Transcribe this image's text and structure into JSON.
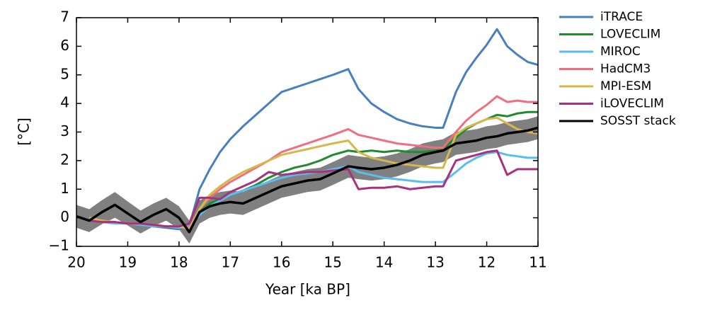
{
  "chart_data": {
    "type": "line",
    "x": [
      20,
      19.75,
      19.5,
      19.25,
      19,
      18.75,
      18.5,
      18.25,
      18,
      17.8,
      17.6,
      17.4,
      17.2,
      17,
      16.75,
      16.5,
      16.25,
      16,
      15.75,
      15.5,
      15.25,
      15,
      14.7,
      14.5,
      14.25,
      14,
      13.75,
      13.5,
      13.25,
      13,
      12.85,
      12.6,
      12.4,
      12.2,
      12,
      11.8,
      11.6,
      11.4,
      11.2,
      11
    ],
    "xlabel": "Year [ka BP]",
    "ylabel": "[°C]",
    "xlim": [
      20,
      11
    ],
    "xticks": [
      20,
      19,
      18,
      17,
      16,
      15,
      14,
      13,
      12,
      11
    ],
    "ylim": [
      -1,
      7
    ],
    "yticks": [
      {
        "value": -1,
        "label": "−1"
      },
      0,
      1,
      2,
      3,
      4,
      5,
      6,
      7
    ],
    "legend": "right",
    "series": [
      {
        "name": "iTRACE",
        "color": "#4a7fbf",
        "values": [
          null,
          -0.05,
          -0.15,
          -0.15,
          -0.2,
          -0.25,
          -0.3,
          -0.35,
          -0.4,
          -0.3,
          1.0,
          1.7,
          2.3,
          2.75,
          3.2,
          3.6,
          4.0,
          4.4,
          4.55,
          4.7,
          4.85,
          5.0,
          5.2,
          4.5,
          4.0,
          3.7,
          3.45,
          3.3,
          3.2,
          3.15,
          3.15,
          4.4,
          5.1,
          5.6,
          6.05,
          6.6,
          6.0,
          5.7,
          5.45,
          5.35
        ]
      },
      {
        "name": "LOVECLIM",
        "color": "#1f8a2e",
        "values": [
          null,
          -0.1,
          -0.15,
          -0.15,
          -0.2,
          -0.25,
          -0.3,
          -0.3,
          -0.35,
          -0.3,
          0.2,
          0.5,
          0.65,
          0.8,
          0.95,
          1.15,
          1.4,
          1.6,
          1.75,
          1.85,
          2.0,
          2.2,
          2.35,
          2.3,
          2.35,
          2.3,
          2.35,
          2.3,
          2.3,
          2.35,
          2.4,
          2.8,
          3.1,
          3.3,
          3.45,
          3.6,
          3.55,
          3.65,
          3.7,
          3.7
        ]
      },
      {
        "name": "MIROC",
        "color": "#5bbcf0",
        "values": [
          null,
          -0.1,
          -0.15,
          -0.2,
          -0.2,
          -0.25,
          -0.3,
          -0.3,
          -0.35,
          -0.3,
          0.1,
          0.4,
          0.6,
          0.8,
          0.95,
          1.1,
          1.25,
          1.4,
          1.5,
          1.55,
          1.6,
          1.7,
          1.8,
          1.6,
          1.5,
          1.4,
          1.35,
          1.3,
          1.25,
          1.25,
          1.25,
          1.6,
          1.9,
          2.1,
          2.25,
          2.3,
          2.2,
          2.15,
          2.1,
          2.1
        ]
      },
      {
        "name": "HadCM3",
        "color": "#ef6f7f",
        "values": [
          null,
          -0.05,
          -0.1,
          -0.15,
          -0.2,
          -0.2,
          -0.25,
          -0.3,
          -0.3,
          -0.35,
          0.3,
          0.7,
          1.0,
          1.25,
          1.5,
          1.75,
          2.0,
          2.3,
          2.45,
          2.6,
          2.75,
          2.9,
          3.1,
          2.9,
          2.8,
          2.7,
          2.6,
          2.55,
          2.5,
          2.45,
          2.45,
          3.0,
          3.4,
          3.7,
          3.95,
          4.25,
          4.05,
          4.1,
          4.05,
          4.05
        ]
      },
      {
        "name": "MPI-ESM",
        "color": "#d4b84a",
        "values": [
          null,
          0.0,
          -0.1,
          -0.15,
          -0.2,
          -0.2,
          -0.25,
          -0.3,
          -0.3,
          -0.4,
          0.3,
          0.8,
          1.1,
          1.35,
          1.6,
          1.8,
          2.0,
          2.2,
          2.3,
          2.4,
          2.5,
          2.6,
          2.7,
          2.3,
          2.1,
          2.0,
          1.9,
          1.85,
          1.8,
          1.75,
          1.75,
          2.9,
          3.15,
          3.3,
          3.45,
          3.5,
          3.3,
          3.1,
          3.0,
          2.95
        ]
      },
      {
        "name": "iLOVECLIM",
        "color": "#a8317e",
        "values": [
          null,
          -0.1,
          -0.15,
          -0.15,
          -0.2,
          -0.2,
          -0.25,
          -0.3,
          -0.3,
          -0.2,
          0.7,
          0.7,
          0.65,
          0.9,
          1.1,
          1.3,
          1.6,
          1.5,
          1.55,
          1.6,
          1.6,
          1.65,
          1.7,
          1.0,
          1.05,
          1.05,
          1.1,
          1.0,
          1.05,
          1.1,
          1.1,
          2.0,
          2.1,
          2.2,
          2.3,
          2.35,
          1.5,
          1.7,
          1.7,
          1.7
        ]
      },
      {
        "name": "SOSST stack",
        "color": "#000000",
        "band_color": "#808080",
        "values": [
          0.05,
          -0.1,
          0.2,
          0.45,
          0.15,
          -0.15,
          0.1,
          0.3,
          0.0,
          -0.5,
          0.2,
          0.4,
          0.5,
          0.55,
          0.5,
          0.7,
          0.9,
          1.1,
          1.2,
          1.3,
          1.35,
          1.55,
          1.8,
          1.75,
          1.7,
          1.75,
          1.85,
          2.0,
          2.2,
          2.3,
          2.35,
          2.6,
          2.65,
          2.7,
          2.8,
          2.85,
          2.95,
          3.0,
          3.05,
          3.15
        ],
        "errors": [
          0.4,
          0.4,
          0.42,
          0.45,
          0.42,
          0.4,
          0.4,
          0.4,
          0.4,
          0.4,
          0.4,
          0.4,
          0.4,
          0.4,
          0.4,
          0.4,
          0.4,
          0.4,
          0.4,
          0.4,
          0.4,
          0.4,
          0.4,
          0.4,
          0.4,
          0.4,
          0.4,
          0.4,
          0.4,
          0.4,
          0.4,
          0.4,
          0.4,
          0.4,
          0.4,
          0.4,
          0.4,
          0.4,
          0.4,
          0.4
        ]
      }
    ]
  }
}
